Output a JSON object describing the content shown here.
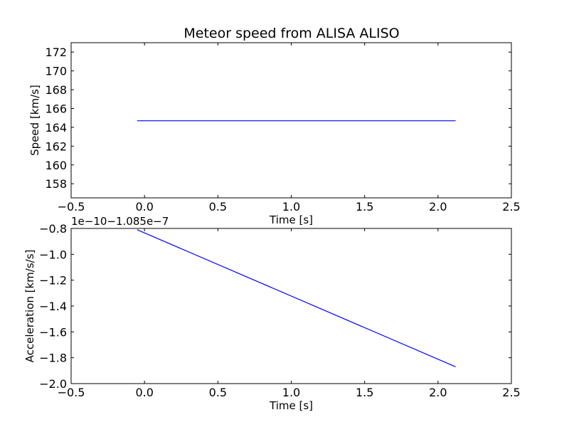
{
  "title": "Meteor speed from  ALISA ALISO",
  "colors": {
    "line": "#0000ff",
    "axes": "#000000",
    "background": "#ffffff"
  },
  "chart_data": [
    {
      "type": "line",
      "xlabel": "Time [s]",
      "ylabel": "Speed [km/s]",
      "xlim": [
        -0.5,
        2.5
      ],
      "ylim": [
        156.5,
        173.0
      ],
      "xticks": [
        -0.5,
        0.0,
        0.5,
        1.0,
        1.5,
        2.0,
        2.5
      ],
      "xtick_labels": [
        "−0.5",
        "0.0",
        "0.5",
        "1.0",
        "1.5",
        "2.0",
        "2.5"
      ],
      "yticks": [
        158,
        160,
        162,
        164,
        166,
        168,
        170,
        172
      ],
      "ytick_labels": [
        "158",
        "160",
        "162",
        "164",
        "166",
        "168",
        "170",
        "172"
      ],
      "grid": false,
      "series": [
        {
          "x": [
            -0.05,
            2.12
          ],
          "y": [
            164.7,
            164.7
          ]
        }
      ]
    },
    {
      "type": "line",
      "xlabel": "Time [s]",
      "ylabel": "Acceleration [km/s/s]",
      "offset_label": "1e−10−1.085e−7",
      "xlim": [
        -0.5,
        2.5
      ],
      "ylim": [
        -2.0,
        -0.8
      ],
      "xticks": [
        -0.5,
        0.0,
        0.5,
        1.0,
        1.5,
        2.0,
        2.5
      ],
      "xtick_labels": [
        "−0.5",
        "0.0",
        "0.5",
        "1.0",
        "1.5",
        "2.0",
        "2.5"
      ],
      "yticks": [
        -2.0,
        -1.8,
        -1.6,
        -1.4,
        -1.2,
        -1.0,
        -0.8
      ],
      "ytick_labels": [
        "−2.0",
        "−1.8",
        "−1.6",
        "−1.4",
        "−1.2",
        "−1.0",
        "−0.8"
      ],
      "grid": false,
      "series": [
        {
          "x": [
            -0.05,
            2.12
          ],
          "y": [
            -0.81,
            -1.87
          ]
        }
      ]
    }
  ]
}
